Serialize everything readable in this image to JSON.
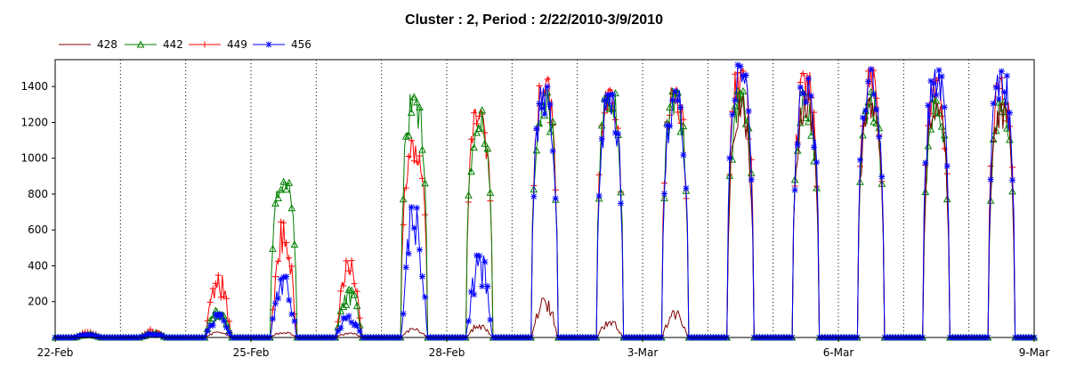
{
  "chart_data": {
    "type": "line",
    "title": "Cluster : 2, Period : 2/22/2010-3/9/2010",
    "xlabel": "",
    "ylabel": "",
    "xlim": [
      "2010-02-22",
      "2010-03-09"
    ],
    "ylim": [
      0,
      1550
    ],
    "x_ticks": [
      "22-Feb",
      "25-Feb",
      "28-Feb",
      "3-Mar",
      "6-Mar",
      "9-Mar"
    ],
    "y_ticks": [
      200,
      400,
      600,
      800,
      1000,
      1200,
      1400
    ],
    "grid": "vertical dotted lines at day boundaries",
    "legend": "top-left",
    "x_days": [
      "2010-02-22",
      "2010-02-23",
      "2010-02-24",
      "2010-02-25",
      "2010-02-26",
      "2010-02-27",
      "2010-02-28",
      "2010-03-01",
      "2010-03-02",
      "2010-03-03",
      "2010-03-04",
      "2010-03-05",
      "2010-03-06",
      "2010-03-07",
      "2010-03-08"
    ],
    "series": [
      {
        "name": "428",
        "color": "#800000",
        "marker": "none",
        "daily_peak": [
          25,
          20,
          30,
          30,
          25,
          50,
          70,
          220,
          90,
          150,
          1350,
          1370,
          1350,
          1320,
          1320
        ]
      },
      {
        "name": "442",
        "color": "#008000",
        "marker": "triangle",
        "daily_peak": [
          20,
          25,
          160,
          880,
          270,
          1360,
          1280,
          1380,
          1380,
          1380,
          1380,
          1370,
          1380,
          1340,
          1320
        ]
      },
      {
        "name": "449",
        "color": "#ff0000",
        "marker": "plus",
        "daily_peak": [
          30,
          45,
          350,
          650,
          430,
          1100,
          1280,
          1450,
          1400,
          1400,
          1510,
          1480,
          1500,
          1450,
          1450
        ]
      },
      {
        "name": "456",
        "color": "#0000ff",
        "marker": "star",
        "daily_peak": [
          15,
          20,
          130,
          340,
          120,
          730,
          460,
          1400,
          1360,
          1380,
          1530,
          1480,
          1510,
          1510,
          1500
        ]
      }
    ]
  }
}
